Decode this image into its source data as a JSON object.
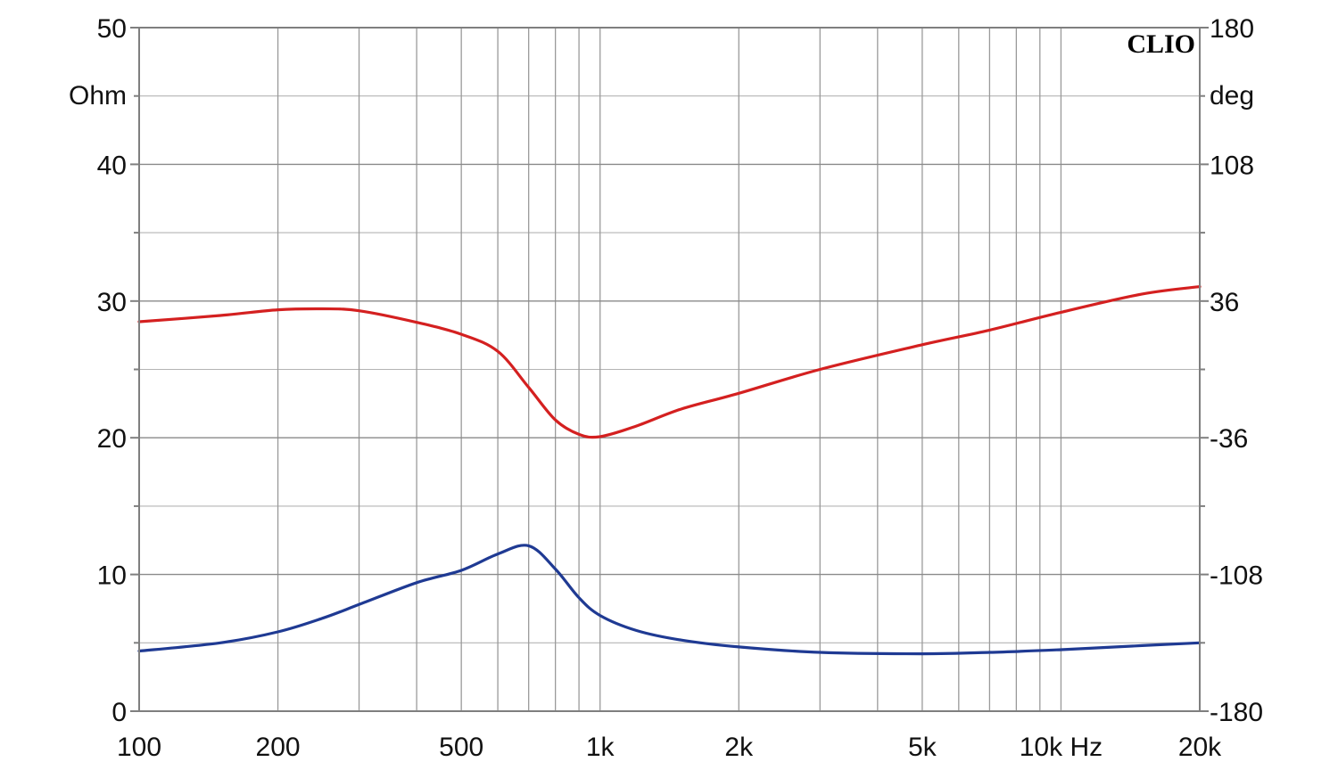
{
  "chart_data": {
    "type": "line",
    "brand": "CLIO",
    "x_scale": "log",
    "xlim": [
      100,
      20000
    ],
    "x_ticks": [
      {
        "value": 100,
        "label": "100"
      },
      {
        "value": 200,
        "label": "200"
      },
      {
        "value": 500,
        "label": "500"
      },
      {
        "value": 1000,
        "label": "1k"
      },
      {
        "value": 2000,
        "label": "2k"
      },
      {
        "value": 5000,
        "label": "5k"
      },
      {
        "value": 10000,
        "label": "10k Hz"
      },
      {
        "value": 20000,
        "label": "20k"
      }
    ],
    "y_left": {
      "unit_label": "Ohm",
      "lim": [
        0,
        50
      ],
      "ticks": [
        {
          "value": 0,
          "label": "0"
        },
        {
          "value": 10,
          "label": "10"
        },
        {
          "value": 20,
          "label": "20"
        },
        {
          "value": 30,
          "label": "30"
        },
        {
          "value": 40,
          "label": "40"
        },
        {
          "value": 50,
          "label": "50"
        }
      ]
    },
    "y_right": {
      "unit_label": "deg",
      "lim": [
        -180,
        180
      ],
      "ticks": [
        {
          "value": -180,
          "label": "-180"
        },
        {
          "value": -108,
          "label": "-108"
        },
        {
          "value": -36,
          "label": "-36"
        },
        {
          "value": 36,
          "label": "36"
        },
        {
          "value": 108,
          "label": "108"
        },
        {
          "value": 180,
          "label": "180"
        }
      ]
    },
    "grid": true,
    "series": [
      {
        "axis": "right",
        "color": "#d42020",
        "x": [
          100,
          150,
          200,
          250,
          300,
          400,
          500,
          600,
          700,
          800,
          900,
          1000,
          1200,
          1500,
          2000,
          3000,
          5000,
          7000,
          10000,
          15000,
          20000
        ],
        "y": [
          25.1,
          28.4,
          31.4,
          31.9,
          30.9,
          24.8,
          18.5,
          9.5,
          -9.5,
          -26.6,
          -34.2,
          -35.4,
          -29.8,
          -20.9,
          -12.6,
          0.0,
          13.0,
          20.7,
          30.1,
          39.7,
          43.6
        ]
      },
      {
        "axis": "left",
        "color": "#1f3a93",
        "x": [
          100,
          150,
          200,
          250,
          300,
          400,
          500,
          600,
          700,
          800,
          900,
          1000,
          1200,
          1500,
          2000,
          3000,
          5000,
          7000,
          10000,
          15000,
          20000
        ],
        "y": [
          4.4,
          5.0,
          5.8,
          6.8,
          7.8,
          9.4,
          10.3,
          11.5,
          12.1,
          10.4,
          8.3,
          7.0,
          5.9,
          5.2,
          4.7,
          4.3,
          4.2,
          4.3,
          4.5,
          4.8,
          5.0
        ]
      }
    ]
  }
}
